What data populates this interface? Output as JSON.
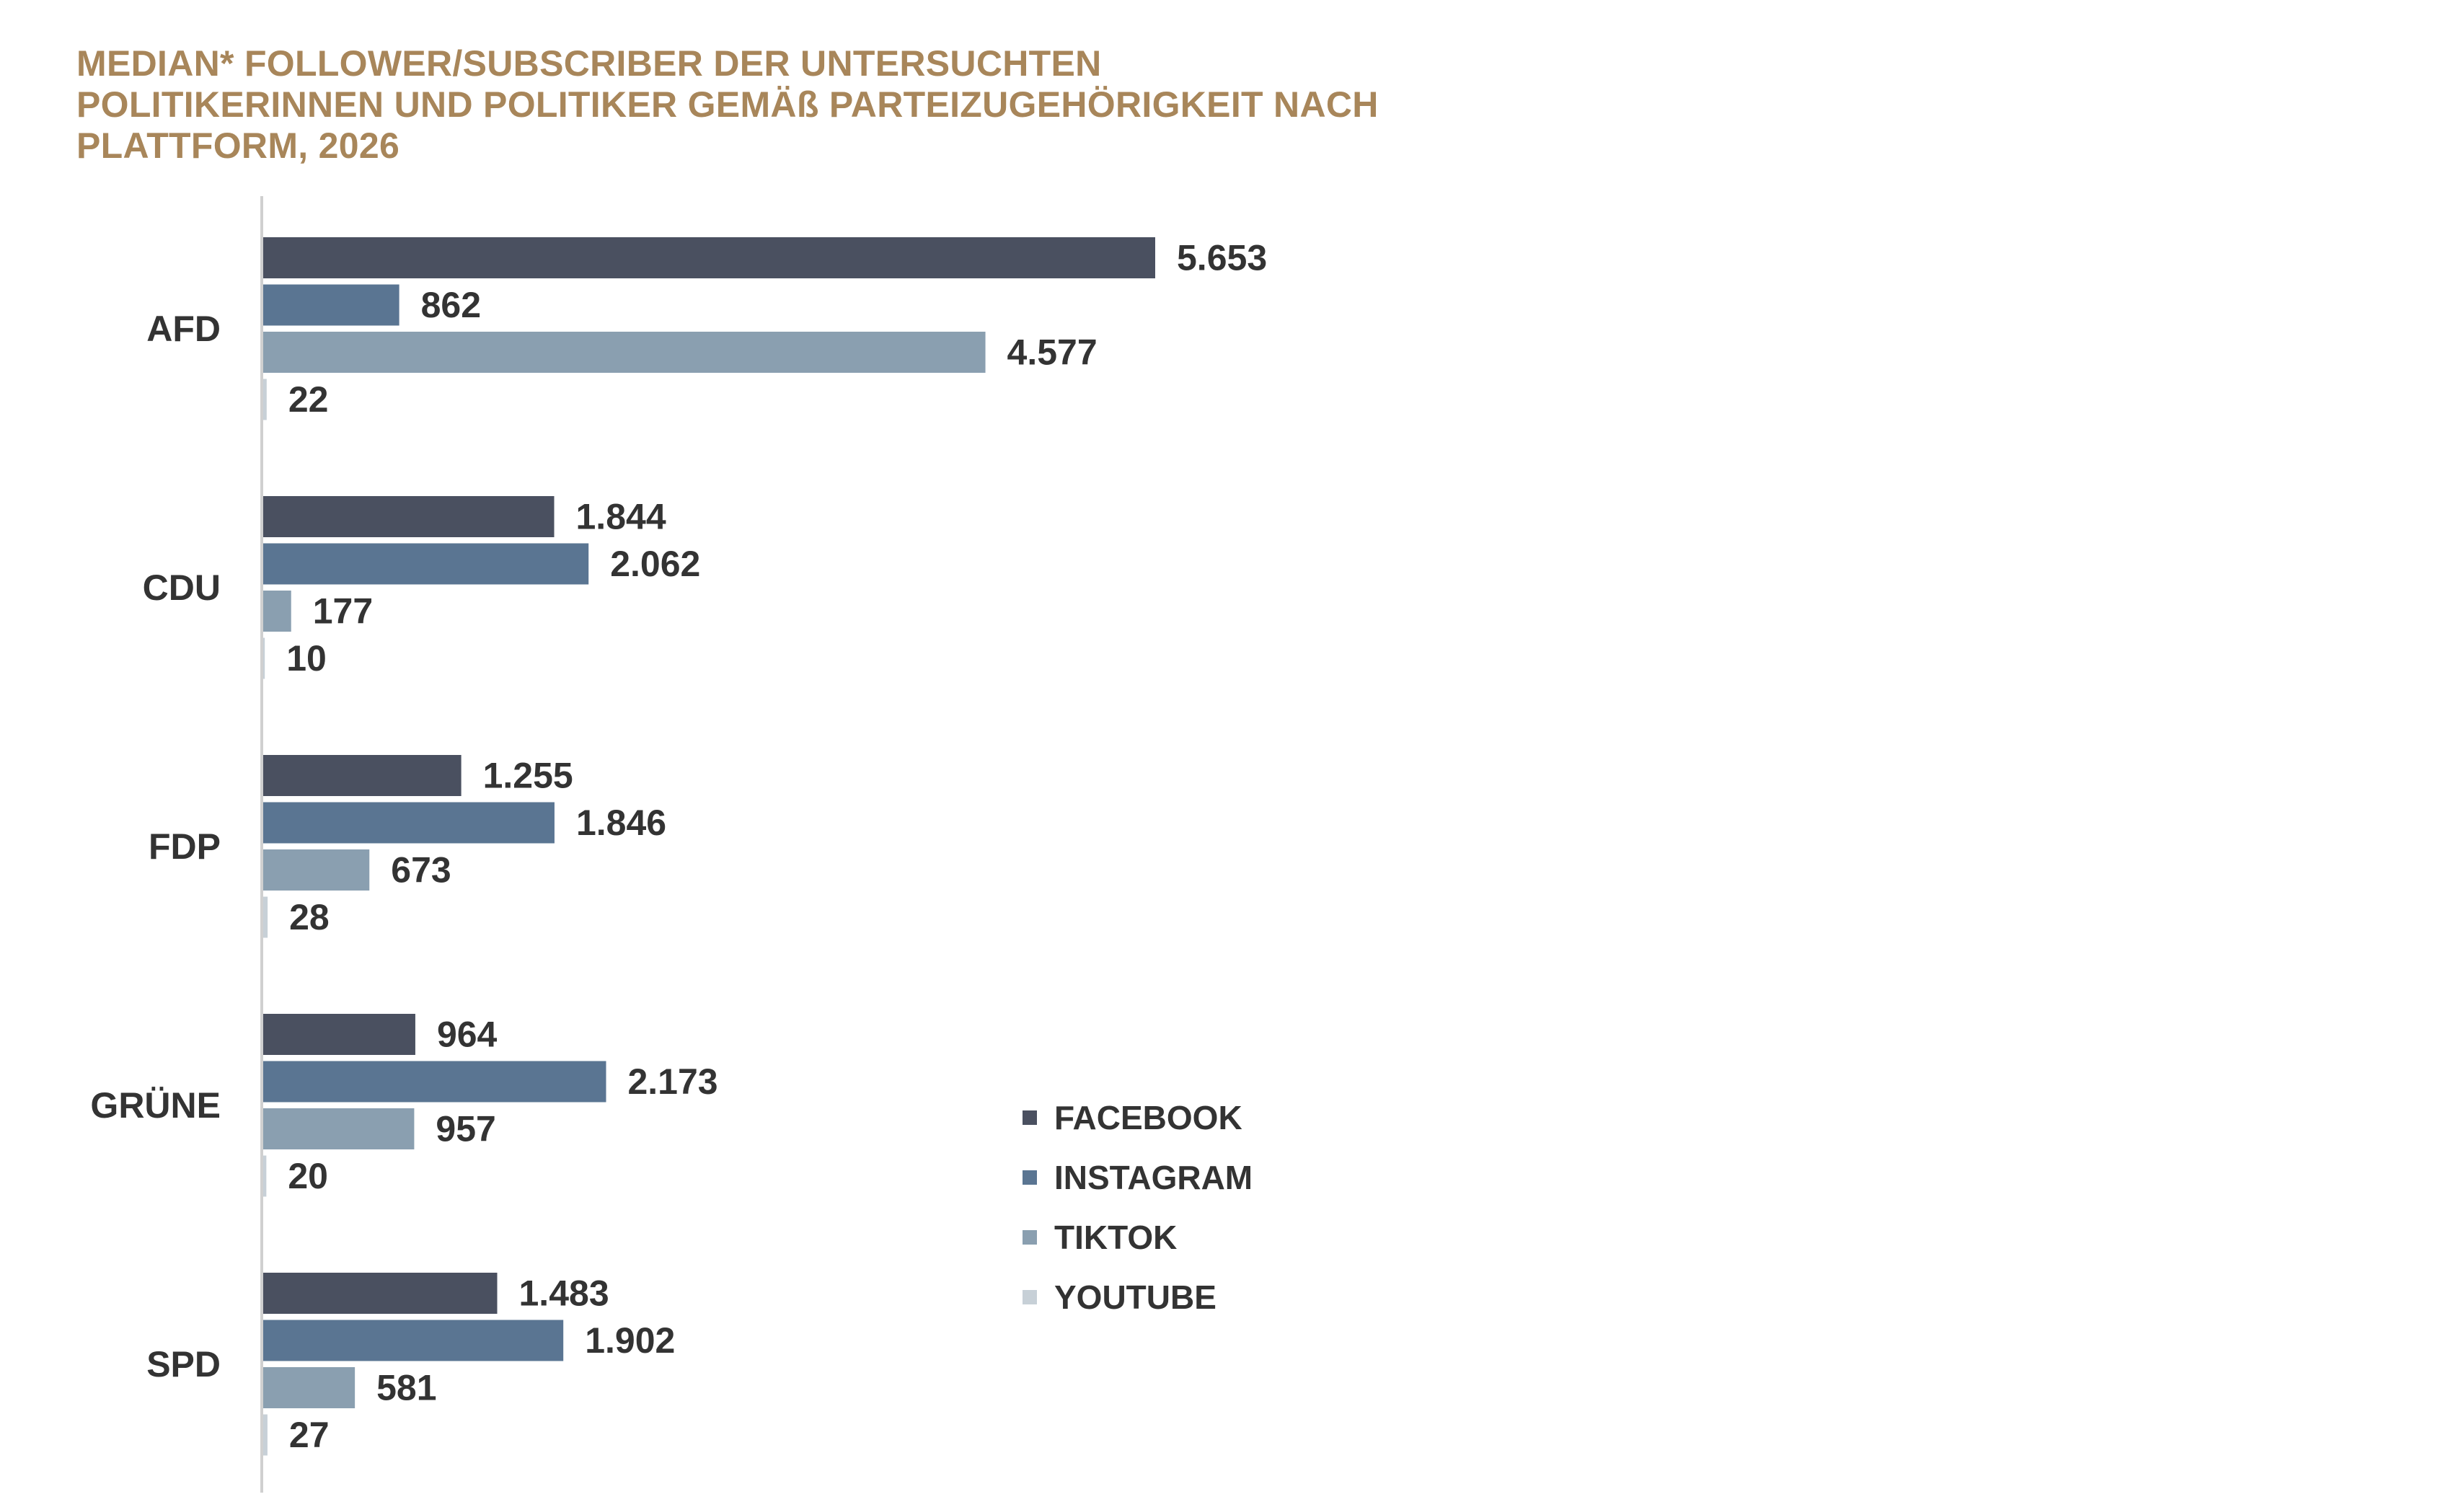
{
  "chart_data": {
    "type": "bar",
    "orientation": "horizontal",
    "title_lines": [
      "MEDIAN* FOLLOWER/SUBSCRIBER DER UNTERSUCHTEN",
      "POLITIKERINNEN UND POLITIKER GEMÄß PARTEIZUGEHÖRIGKEIT NACH",
      "PLATTFORM, 2026"
    ],
    "categories": [
      "AFD",
      "CDU",
      "FDP",
      "GRÜNE",
      "SPD"
    ],
    "series": [
      {
        "name": "FACEBOOK",
        "color": "#4a5060",
        "values": [
          5653,
          1844,
          1255,
          964,
          1483
        ],
        "labels": [
          "5.653",
          "1.844",
          "1.255",
          "964",
          "1.483"
        ]
      },
      {
        "name": "INSTAGRAM",
        "color": "#5a7592",
        "values": [
          862,
          2062,
          1846,
          2173,
          1902
        ],
        "labels": [
          "862",
          "2.062",
          "1.846",
          "2.173",
          "1.902"
        ]
      },
      {
        "name": "TIKTOK",
        "color": "#8a9fb0",
        "values": [
          4577,
          177,
          673,
          957,
          581
        ],
        "labels": [
          "4.577",
          "177",
          "673",
          "957",
          "581"
        ]
      },
      {
        "name": "YOUTUBE",
        "color": "#c7d0d7",
        "values": [
          22,
          10,
          28,
          20,
          27
        ],
        "labels": [
          "22",
          "10",
          "28",
          "20",
          "27"
        ]
      }
    ],
    "xlim": [
      0,
      10000
    ],
    "grid": false,
    "legend_position": "bottom-right"
  }
}
